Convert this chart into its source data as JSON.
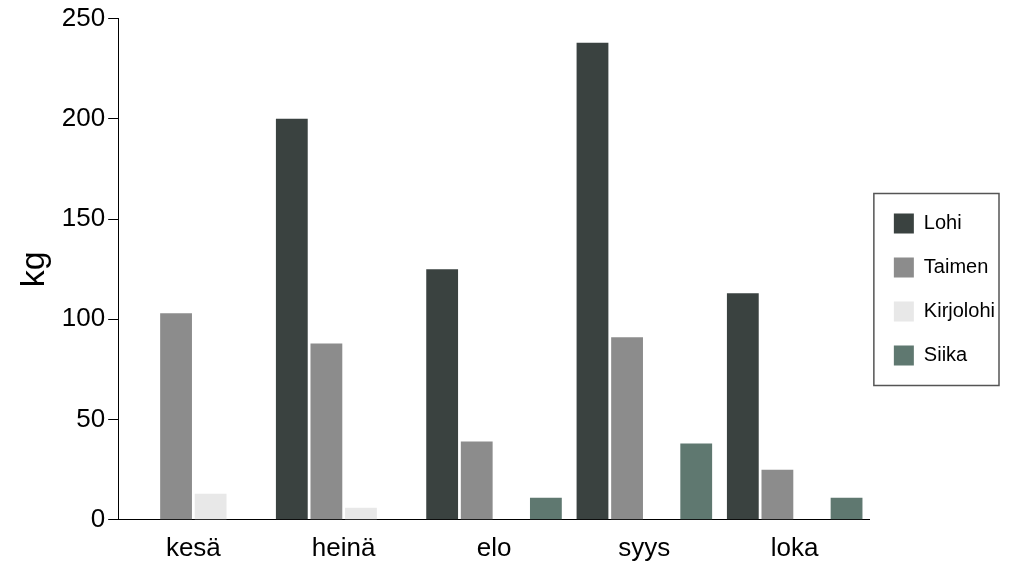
{
  "chart_data": {
    "type": "bar",
    "ylabel": "kg",
    "categories": [
      "kesä",
      "heinä",
      "elo",
      "syys",
      "loka"
    ],
    "series": [
      {
        "name": "Lohi",
        "color": "#3a4240",
        "values": [
          0,
          200,
          125,
          238,
          113
        ]
      },
      {
        "name": "Taimen",
        "color": "#8c8c8c",
        "values": [
          103,
          88,
          39,
          91,
          25
        ]
      },
      {
        "name": "Kirjolohi",
        "color": "#e8e8e8",
        "values": [
          13,
          6,
          0,
          0,
          0
        ]
      },
      {
        "name": "Siika",
        "color": "#5f7870",
        "values": [
          0,
          0,
          11,
          38,
          11
        ]
      }
    ],
    "ylim": [
      0,
      250
    ],
    "yticks": [
      0,
      50,
      100,
      150,
      200,
      250
    ],
    "grid": false,
    "legend": "right"
  }
}
